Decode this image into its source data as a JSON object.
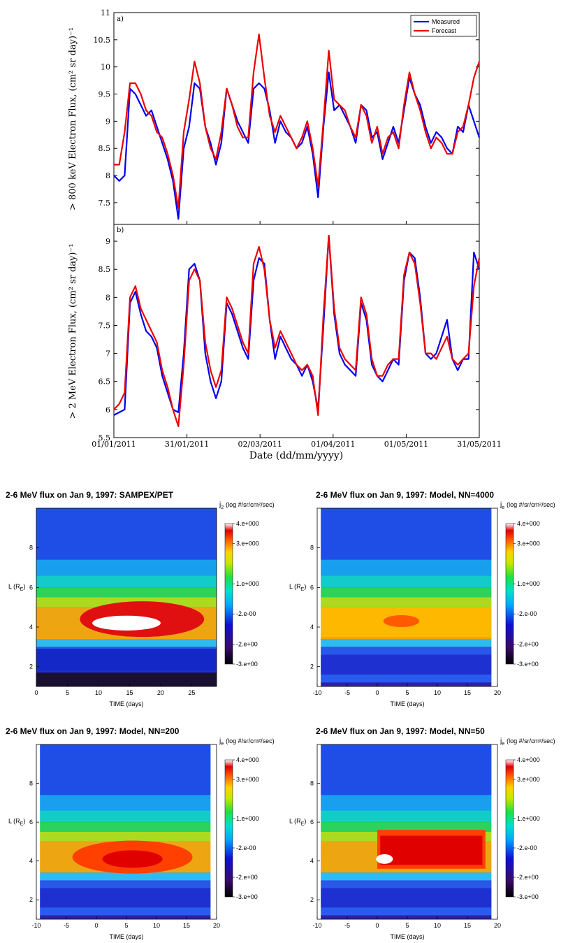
{
  "top_figure": {
    "xlabel": "Date (dd/mm/yyyy)",
    "x_ticks": [
      "01/01/2011",
      "31/01/2011",
      "02/03/2011",
      "01/04/2011",
      "01/05/2011",
      "31/05/2011"
    ],
    "panel_a": {
      "tag": "a)",
      "ylabel": "> 800 keV Electron Flux, (cm² sr day)⁻¹",
      "y_ticks": [
        "7.5",
        "8",
        "8.5",
        "9",
        "9.5",
        "10",
        "10.5",
        "11"
      ],
      "legend": [
        "Measured",
        "Forecast"
      ]
    },
    "panel_b": {
      "tag": "b)",
      "ylabel": "> 2 MeV Electron Flux, (cm² sr day)⁻¹",
      "y_ticks": [
        "5.5",
        "6",
        "6.5",
        "7",
        "7.5",
        "8",
        "8.5",
        "9"
      ]
    },
    "colors": {
      "measured": "#0000ee",
      "forecast": "#ee0000"
    }
  },
  "heatmaps": [
    {
      "title": "2-6 MeV flux on Jan 9, 1997: SAMPEX/PET",
      "cb_title": "j",
      "cb_sub": "2",
      "cb_unit": "(log #/sr/cm²/sec)",
      "xlabel": "TIME (days)",
      "ylabel": "L (R",
      "ylabel_sub": "E",
      "x_ticks": [
        "0",
        "5",
        "10",
        "15",
        "20",
        "25"
      ],
      "y_ticks": [
        "2",
        "4",
        "6",
        "8"
      ],
      "cb_labels": [
        "4.e+000",
        "3.e+000",
        "1.e+000",
        "-2.e-00",
        "-2.e+00",
        "-3.e+00"
      ]
    },
    {
      "title": "2-6 MeV flux on Jan 9, 1997: Model, NN=4000",
      "cb_title": "j",
      "cb_sub": "e",
      "cb_unit": "(log #/sr/cm²/sec)",
      "xlabel": "TIME (days)",
      "ylabel": "L (R",
      "ylabel_sub": "E",
      "x_ticks": [
        "-10",
        "-5",
        "0",
        "5",
        "10",
        "15",
        "20"
      ],
      "y_ticks": [
        "2",
        "4",
        "6",
        "8"
      ],
      "cb_labels": [
        "4.e+000",
        "3.e+000",
        "1.e+000",
        "-2.e-00",
        "-2.e+00",
        "-3.e+00"
      ]
    },
    {
      "title": "2-6 MeV flux on Jan 9, 1997: Model, NN=200",
      "cb_title": "j",
      "cb_sub": "e",
      "cb_unit": "(log #/sr/cm²/sec)",
      "xlabel": "TIME (days)",
      "ylabel": "L (R",
      "ylabel_sub": "E",
      "x_ticks": [
        "-10",
        "-5",
        "0",
        "5",
        "10",
        "15",
        "20"
      ],
      "y_ticks": [
        "2",
        "4",
        "6",
        "8"
      ],
      "cb_labels": [
        "4.e+000",
        "3.e+000",
        "1.e+000",
        "-2.e-00",
        "-2.e+00",
        "-3.e+00"
      ]
    },
    {
      "title": "2-6 MeV flux on Jan 9, 1997: Model, NN=50",
      "cb_title": "j",
      "cb_sub": "e",
      "cb_unit": "(log #/sr/cm²/sec)",
      "xlabel": "TIME (days)",
      "ylabel": "L (R",
      "ylabel_sub": "E",
      "x_ticks": [
        "-10",
        "-5",
        "0",
        "5",
        "10",
        "15",
        "20"
      ],
      "y_ticks": [
        "2",
        "4",
        "6",
        "8"
      ],
      "cb_labels": [
        "4.e+000",
        "3.e+000",
        "1.e+000",
        "-2.e-00",
        "-2.e+00",
        "-3.e+00"
      ]
    }
  ],
  "chart_data": [
    {
      "type": "line",
      "panel": "a",
      "xlabel": "Date (dd/mm/yyyy)",
      "ylabel": "> 800 keV Electron Flux, (cm² sr day)⁻¹",
      "xlim": [
        "01/01/2011",
        "31/05/2011"
      ],
      "ylim": [
        7.1,
        11
      ],
      "legend_position": "top-right",
      "series": [
        {
          "name": "Measured",
          "color": "#0000ee",
          "values": [
            8.0,
            7.9,
            8.0,
            9.6,
            9.5,
            9.3,
            9.1,
            9.2,
            8.9,
            8.6,
            8.3,
            7.9,
            7.2,
            8.5,
            8.9,
            9.7,
            9.6,
            8.9,
            8.6,
            8.2,
            8.6,
            9.6,
            9.3,
            9.0,
            8.8,
            8.6,
            9.6,
            9.7,
            9.6,
            9.2,
            8.6,
            9.0,
            8.8,
            8.7,
            8.5,
            8.6,
            8.9,
            8.4,
            7.6,
            8.9,
            9.9,
            9.2,
            9.3,
            9.1,
            8.9,
            8.6,
            9.3,
            9.2,
            8.7,
            8.8,
            8.3,
            8.6,
            8.9,
            8.6,
            9.2,
            9.8,
            9.5,
            9.3,
            8.9,
            8.6,
            8.8,
            8.7,
            8.5,
            8.4,
            8.9,
            8.8,
            9.3,
            9.0,
            8.7
          ]
        },
        {
          "name": "Forecast",
          "color": "#ee0000",
          "values": [
            8.2,
            8.2,
            8.8,
            9.7,
            9.7,
            9.5,
            9.2,
            9.1,
            8.8,
            8.7,
            8.4,
            8.0,
            7.4,
            8.8,
            9.4,
            10.1,
            9.7,
            8.9,
            8.5,
            8.3,
            8.8,
            9.6,
            9.3,
            8.9,
            8.7,
            8.7,
            9.9,
            10.6,
            9.8,
            9.1,
            8.8,
            9.1,
            8.9,
            8.7,
            8.5,
            8.7,
            9.0,
            8.5,
            7.8,
            9.0,
            10.3,
            9.4,
            9.3,
            9.2,
            8.9,
            8.7,
            9.3,
            9.1,
            8.6,
            8.9,
            8.4,
            8.7,
            8.8,
            8.5,
            9.3,
            9.9,
            9.5,
            9.2,
            8.8,
            8.5,
            8.7,
            8.6,
            8.4,
            8.4,
            8.8,
            8.9,
            9.3,
            9.8,
            10.1
          ]
        }
      ]
    },
    {
      "type": "line",
      "panel": "b",
      "xlabel": "Date (dd/mm/yyyy)",
      "ylabel": "> 2 MeV Electron Flux, (cm² sr day)⁻¹",
      "xlim": [
        "01/01/2011",
        "31/05/2011"
      ],
      "ylim": [
        5.5,
        9.3
      ],
      "series": [
        {
          "name": "Measured",
          "color": "#0000ee",
          "values": [
            5.9,
            5.95,
            6.0,
            7.9,
            8.1,
            7.7,
            7.4,
            7.3,
            7.1,
            6.6,
            6.3,
            6.0,
            5.95,
            7.0,
            8.5,
            8.6,
            8.3,
            7.0,
            6.5,
            6.2,
            6.5,
            7.9,
            7.7,
            7.4,
            7.1,
            6.9,
            8.3,
            8.7,
            8.6,
            7.6,
            6.9,
            7.3,
            7.1,
            6.9,
            6.8,
            6.6,
            6.8,
            6.5,
            6.0,
            7.5,
            9.1,
            7.7,
            7.0,
            6.8,
            6.7,
            6.6,
            7.9,
            7.6,
            6.8,
            6.6,
            6.5,
            6.7,
            6.9,
            6.8,
            8.3,
            8.8,
            8.7,
            8.0,
            7.0,
            6.9,
            7.0,
            7.3,
            7.6,
            6.9,
            6.7,
            6.9,
            6.9,
            8.8,
            8.5
          ]
        },
        {
          "name": "Forecast",
          "color": "#ee0000",
          "values": [
            6.0,
            6.1,
            6.3,
            8.0,
            8.2,
            7.8,
            7.6,
            7.4,
            7.2,
            6.7,
            6.4,
            6.0,
            5.7,
            6.8,
            8.3,
            8.5,
            8.3,
            7.2,
            6.7,
            6.4,
            6.7,
            8.0,
            7.8,
            7.5,
            7.2,
            7.0,
            8.6,
            8.9,
            8.5,
            7.6,
            7.1,
            7.4,
            7.2,
            7.0,
            6.8,
            6.7,
            6.8,
            6.6,
            5.9,
            7.7,
            9.1,
            7.8,
            7.1,
            6.9,
            6.8,
            6.7,
            8.0,
            7.7,
            6.9,
            6.6,
            6.6,
            6.8,
            6.9,
            6.9,
            8.4,
            8.8,
            8.6,
            7.9,
            7.0,
            7.0,
            6.9,
            7.1,
            7.3,
            6.9,
            6.8,
            6.9,
            7.0,
            8.2,
            8.7
          ]
        }
      ]
    },
    {
      "type": "heatmap",
      "title": "2-6 MeV flux on Jan 9, 1997: SAMPEX/PET",
      "xlabel": "TIME (days)",
      "ylabel": "L (RE)",
      "xlim": [
        0,
        29
      ],
      "ylim": [
        1,
        10
      ],
      "colorbar": {
        "label": "j2 (log #/sr/cm²/sec)",
        "range": [
          -3,
          4
        ]
      }
    },
    {
      "type": "heatmap",
      "title": "2-6 MeV flux on Jan 9, 1997: Model, NN=4000",
      "xlabel": "TIME (days)",
      "ylabel": "L (RE)",
      "xlim": [
        -10,
        20
      ],
      "ylim": [
        1,
        10
      ],
      "colorbar": {
        "label": "je (log #/sr/cm²/sec)",
        "range": [
          -3,
          4
        ]
      }
    },
    {
      "type": "heatmap",
      "title": "2-6 MeV flux on Jan 9, 1997: Model, NN=200",
      "xlabel": "TIME (days)",
      "ylabel": "L (RE)",
      "xlim": [
        -10,
        20
      ],
      "ylim": [
        1,
        10
      ],
      "colorbar": {
        "label": "je (log #/sr/cm²/sec)",
        "range": [
          -3,
          4
        ]
      }
    },
    {
      "type": "heatmap",
      "title": "2-6 MeV flux on Jan 9, 1997: Model, NN=50",
      "xlabel": "TIME (days)",
      "ylabel": "L (RE)",
      "xlim": [
        -10,
        20
      ],
      "ylim": [
        1,
        10
      ],
      "colorbar": {
        "label": "je (log #/sr/cm²/sec)",
        "range": [
          -3,
          4
        ]
      }
    }
  ]
}
